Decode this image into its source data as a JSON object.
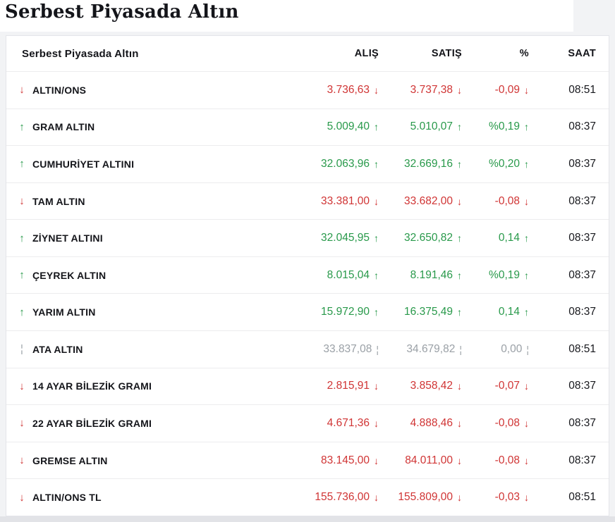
{
  "page": {
    "title": "Serbest Piyasada Altın"
  },
  "table": {
    "title": "Serbest Piyasada Altın",
    "columns": {
      "alis": "ALIŞ",
      "satis": "SATIŞ",
      "pct": "%",
      "saat": "SAAT"
    },
    "colors": {
      "up": "#28994a",
      "down": "#d03434",
      "neutral": "#9aa0a6",
      "label": "#14151a",
      "time": "#17181d"
    },
    "icons": {
      "up": "↑",
      "down": "↓",
      "neutral": "¦"
    },
    "rows": [
      {
        "name": "ALTIN/ONS",
        "trend": "down",
        "alis": "3.736,63",
        "satis": "3.737,38",
        "pct": "-0,09",
        "saat": "08:51"
      },
      {
        "name": "GRAM ALTIN",
        "trend": "up",
        "alis": "5.009,40",
        "satis": "5.010,07",
        "pct": "%0,19",
        "saat": "08:37"
      },
      {
        "name": "CUMHURİYET ALTINI",
        "trend": "up",
        "alis": "32.063,96",
        "satis": "32.669,16",
        "pct": "%0,20",
        "saat": "08:37"
      },
      {
        "name": "TAM ALTIN",
        "trend": "down",
        "alis": "33.381,00",
        "satis": "33.682,00",
        "pct": "-0,08",
        "saat": "08:37"
      },
      {
        "name": "ZİYNET ALTINI",
        "trend": "up",
        "alis": "32.045,95",
        "satis": "32.650,82",
        "pct": "0,14",
        "saat": "08:37"
      },
      {
        "name": "ÇEYREK ALTIN",
        "trend": "up",
        "alis": "8.015,04",
        "satis": "8.191,46",
        "pct": "%0,19",
        "saat": "08:37"
      },
      {
        "name": "YARIM ALTIN",
        "trend": "up",
        "alis": "15.972,90",
        "satis": "16.375,49",
        "pct": "0,14",
        "saat": "08:37"
      },
      {
        "name": "ATA ALTIN",
        "trend": "neutral",
        "alis": "33.837,08",
        "satis": "34.679,82",
        "pct": "0,00",
        "saat": "08:51"
      },
      {
        "name": "14 AYAR BİLEZİK GRAMI",
        "trend": "down",
        "alis": "2.815,91",
        "satis": "3.858,42",
        "pct": "-0,07",
        "saat": "08:37"
      },
      {
        "name": "22 AYAR BİLEZİK GRAMI",
        "trend": "down",
        "alis": "4.671,36",
        "satis": "4.888,46",
        "pct": "-0,08",
        "saat": "08:37"
      },
      {
        "name": "GREMSE ALTIN",
        "trend": "down",
        "alis": "83.145,00",
        "satis": "84.011,00",
        "pct": "-0,08",
        "saat": "08:37"
      },
      {
        "name": "ALTIN/ONS TL",
        "trend": "down",
        "alis": "155.736,00",
        "satis": "155.809,00",
        "pct": "-0,03",
        "saat": "08:51"
      }
    ]
  }
}
